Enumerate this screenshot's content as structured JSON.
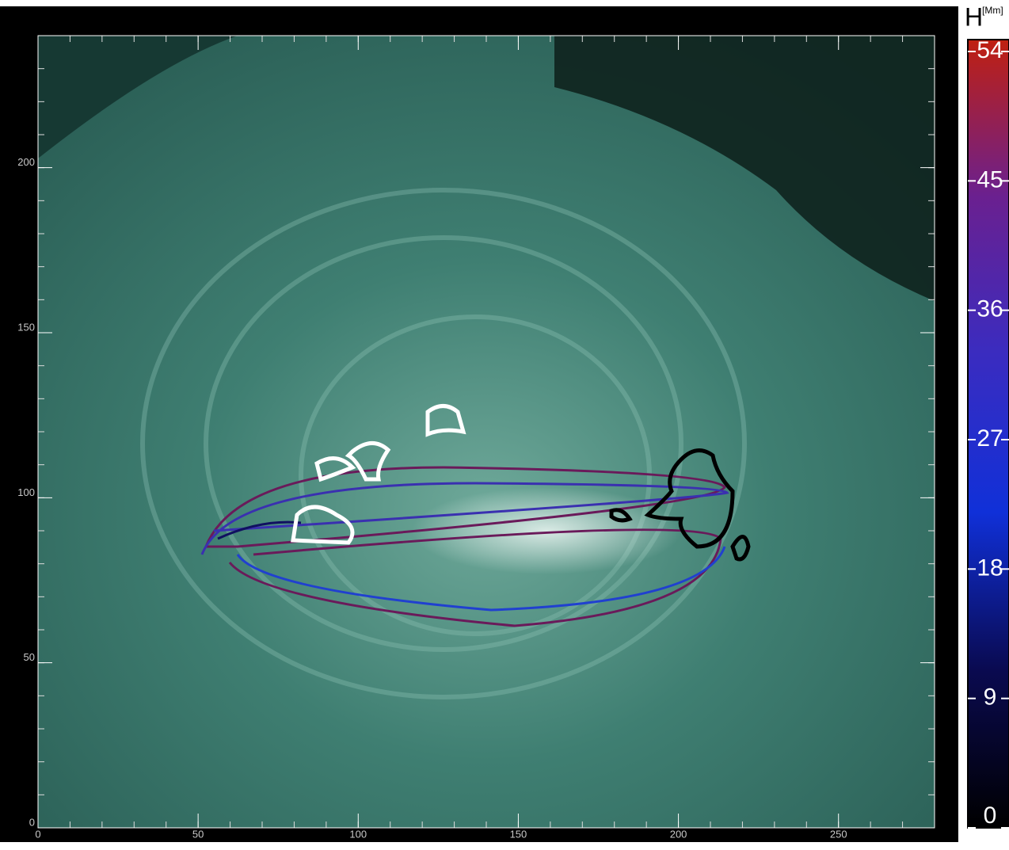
{
  "chart_data": {
    "type": "image",
    "xlim": [
      0,
      280
    ],
    "ylim": [
      0,
      240
    ],
    "xticks": [
      0,
      50,
      100,
      150,
      200,
      250
    ],
    "yticks": [
      0,
      50,
      100,
      150,
      200
    ],
    "colorbar": {
      "label": "H",
      "unit": "[Mm]",
      "lim": [
        0,
        54
      ],
      "ticks": [
        0,
        9,
        18,
        27,
        36,
        45,
        54
      ],
      "colors": [
        "#000000",
        "#0a0a50",
        "#1030d8",
        "#3a2cc0",
        "#6a2090",
        "#c02010"
      ]
    }
  }
}
